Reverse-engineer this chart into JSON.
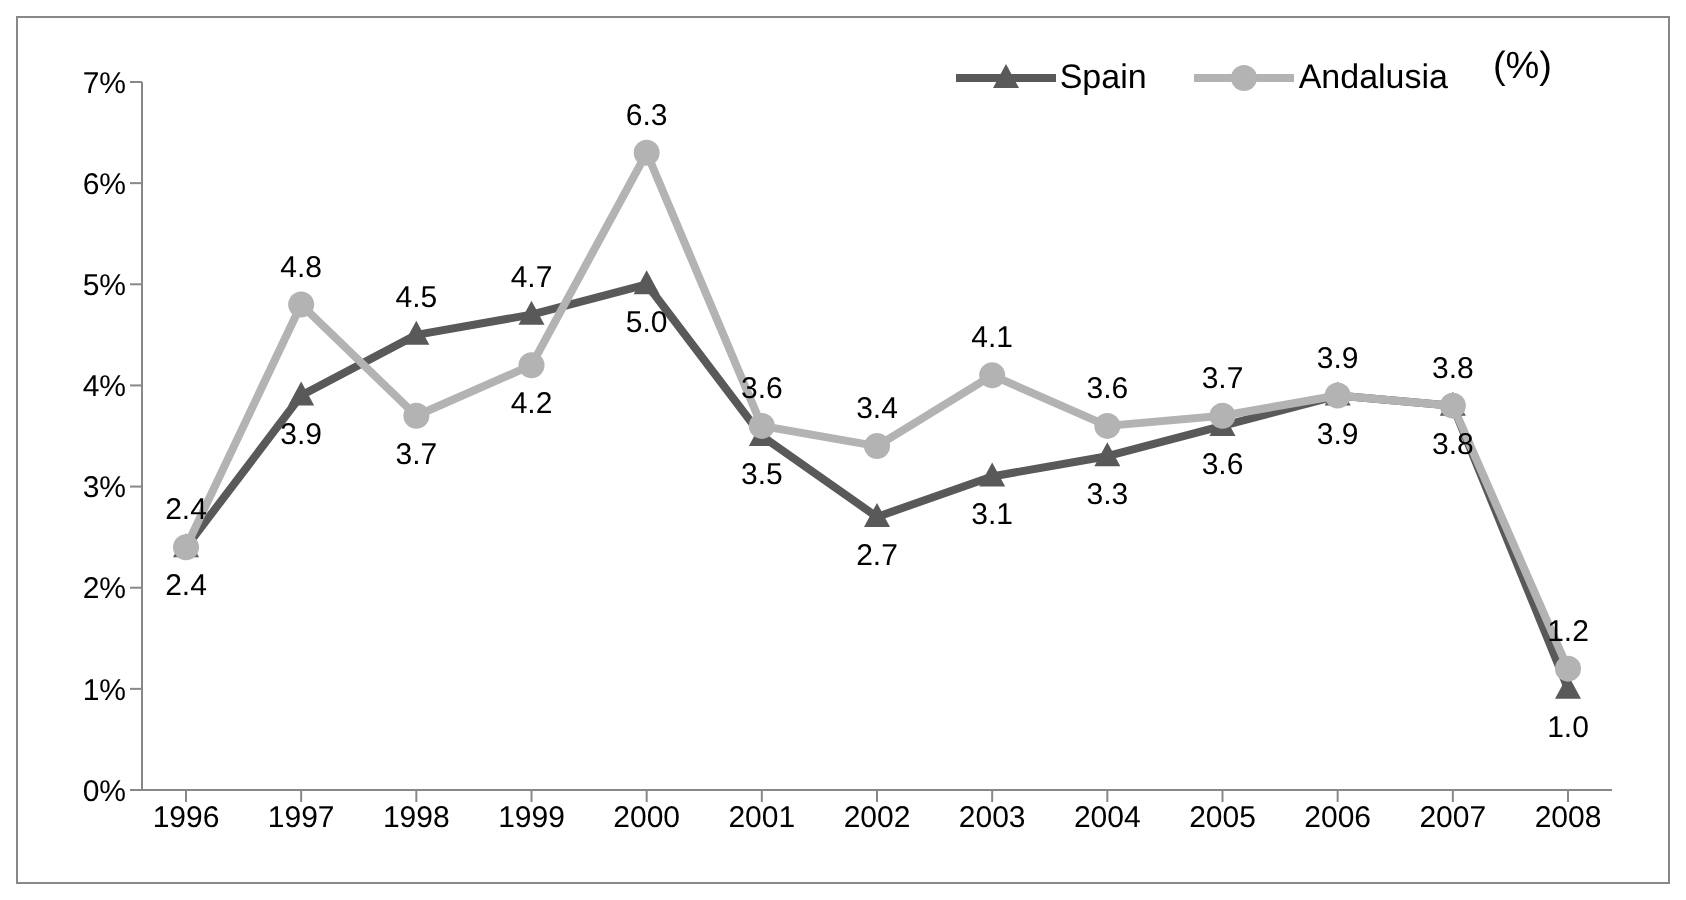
{
  "chart_data": {
    "type": "line",
    "ylabel": "(%)",
    "categories": [
      "1996",
      "1997",
      "1998",
      "1999",
      "2000",
      "2001",
      "2002",
      "2003",
      "2004",
      "2005",
      "2006",
      "2007",
      "2008"
    ],
    "series": [
      {
        "name": "Spain",
        "color": "#595959",
        "marker": "triangle",
        "values": [
          2.4,
          3.9,
          4.5,
          4.7,
          5.0,
          3.5,
          2.7,
          3.1,
          3.3,
          3.6,
          3.9,
          3.8,
          1.0
        ],
        "value_labels": [
          "2.4",
          "3.9",
          "4.5",
          "4.7",
          "5.0",
          "3.5",
          "2.7",
          "3.1",
          "3.3",
          "3.6",
          "3.9",
          "3.8",
          "1.0"
        ]
      },
      {
        "name": "Andalusia",
        "color": "#b3b3b3",
        "marker": "circle",
        "values": [
          2.4,
          4.8,
          3.7,
          4.2,
          6.3,
          3.6,
          3.4,
          4.1,
          3.6,
          3.7,
          3.9,
          3.8,
          1.2
        ],
        "value_labels": [
          "2.4",
          "4.8",
          "3.7",
          "4.2",
          "6.3",
          "3.6",
          "3.4",
          "4.1",
          "3.6",
          "3.7",
          "3.9",
          "3.8",
          "1.2"
        ]
      }
    ],
    "ylim": [
      0,
      7
    ],
    "yticks": [
      {
        "value": 0,
        "label": "0%"
      },
      {
        "value": 1,
        "label": "1%"
      },
      {
        "value": 2,
        "label": "2%"
      },
      {
        "value": 3,
        "label": "3%"
      },
      {
        "value": 4,
        "label": "4%"
      },
      {
        "value": 5,
        "label": "5%"
      },
      {
        "value": 6,
        "label": "6%"
      },
      {
        "value": 7,
        "label": "7%"
      }
    ],
    "grid": false,
    "legend": "top right"
  }
}
